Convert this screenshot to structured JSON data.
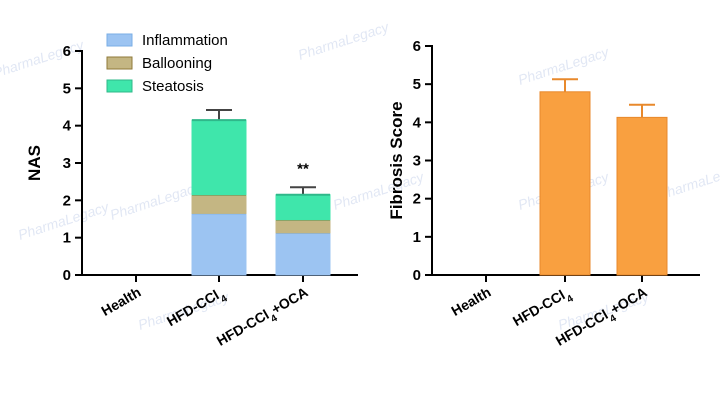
{
  "chart_data": [
    {
      "type": "bar",
      "stacked": true,
      "ylabel": "NAS",
      "xlabel": "",
      "ylim": [
        0,
        6
      ],
      "yticks": [
        0,
        1,
        2,
        3,
        4,
        5,
        6
      ],
      "categories": [
        "Health",
        "HFD-CCl4",
        "HFD-CCl4+OCA"
      ],
      "series": [
        {
          "name": "Inflammation",
          "color": "#9cc4f2",
          "values": [
            0,
            1.65,
            1.13
          ],
          "errors": [
            0,
            0,
            0
          ]
        },
        {
          "name": "Ballooning",
          "color": "#c4b683",
          "values": [
            0,
            0.5,
            0.35
          ],
          "errors": [
            0,
            0.22,
            0.2
          ]
        },
        {
          "name": "Steatosis",
          "color": "#3fe6ab",
          "values": [
            0,
            2.0,
            0.67
          ],
          "errors": [
            0,
            0.27,
            0.2
          ]
        }
      ],
      "annotations": [
        {
          "category": "HFD-CCl4+OCA",
          "text": "**"
        }
      ],
      "legend": "top-left"
    },
    {
      "type": "bar",
      "ylabel": "Fibrosis Score",
      "xlabel": "",
      "ylim": [
        0,
        6
      ],
      "yticks": [
        0,
        1,
        2,
        3,
        4,
        5,
        6
      ],
      "categories": [
        "Health",
        "HFD-CCl4",
        "HFD-CCl4+OCA"
      ],
      "series": [
        {
          "name": "Fibrosis Score",
          "color": "#f9a040",
          "values": [
            0,
            4.8,
            4.13
          ],
          "errors": [
            0,
            0.33,
            0.33
          ]
        }
      ]
    }
  ],
  "watermark": {
    "text": "PharmaLegacy"
  }
}
